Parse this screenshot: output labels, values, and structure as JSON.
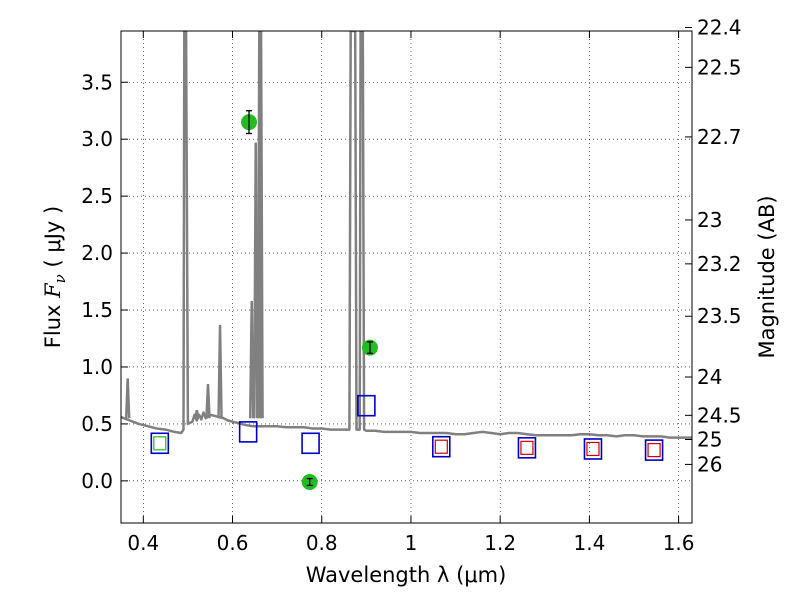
{
  "chart_data": {
    "type": "scatter",
    "xlabel": "Wavelength  λ (μm)",
    "ylabel": "Flux  F_ν  ( μJy )",
    "ylabel_parts": {
      "prefix": "Flux  ",
      "symbol": "F",
      "subscript": "ν",
      "suffix": "  ( μJy )"
    },
    "y2label": "Magnitude (AB)",
    "xlim": [
      0.35,
      1.63
    ],
    "ylim": [
      -0.37,
      3.95
    ],
    "x_ticks": [
      0.4,
      0.6,
      0.8,
      1.0,
      1.2,
      1.4,
      1.6
    ],
    "x_tick_labels": [
      "0.4",
      "0.6",
      "0.8",
      "1",
      "1.2",
      "1.4",
      "1.6"
    ],
    "y_ticks": [
      0.0,
      0.5,
      1.0,
      1.5,
      2.0,
      2.5,
      3.0,
      3.5
    ],
    "y_tick_labels": [
      "0.0",
      "0.5",
      "1.0",
      "1.5",
      "2.0",
      "2.5",
      "3.0",
      "3.5"
    ],
    "y2_ticks": [
      22.4,
      22.5,
      22.7,
      23,
      23.2,
      23.5,
      24,
      24.5,
      25,
      26
    ],
    "y2_tick_labels": [
      "22.4",
      "22.5",
      "22.7",
      "23",
      "23.2",
      "23.5",
      "24",
      "24.5",
      "25",
      "26"
    ],
    "grid": true,
    "colors": {
      "spectrum": "#808080",
      "observed": "#22bb22",
      "model_blue": "#0000cc",
      "model_red": "#cc0000",
      "model_green": "#22bb22"
    },
    "series": [
      {
        "kind": "spectrum",
        "points": [
          [
            0.35,
            0.56
          ],
          [
            0.37,
            0.53
          ],
          [
            0.39,
            0.5
          ],
          [
            0.41,
            0.48
          ],
          [
            0.43,
            0.46
          ],
          [
            0.45,
            0.45
          ],
          [
            0.47,
            0.43
          ],
          [
            0.485,
            0.42
          ],
          [
            0.49,
            0.45
          ],
          [
            0.492,
            3.95
          ],
          [
            0.496,
            3.95
          ],
          [
            0.5,
            0.5
          ],
          [
            0.51,
            0.52
          ],
          [
            0.515,
            0.58
          ],
          [
            0.52,
            0.53
          ],
          [
            0.525,
            0.58
          ],
          [
            0.53,
            0.54
          ],
          [
            0.535,
            0.6
          ],
          [
            0.54,
            0.55
          ],
          [
            0.55,
            0.58
          ],
          [
            0.56,
            0.57
          ],
          [
            0.57,
            0.56
          ],
          [
            0.58,
            0.55
          ],
          [
            0.59,
            0.53
          ],
          [
            0.6,
            0.52
          ],
          [
            0.62,
            0.5
          ],
          [
            0.63,
            0.49
          ],
          [
            0.645,
            0.48
          ],
          [
            0.66,
            0.48
          ],
          [
            0.68,
            0.48
          ],
          [
            0.7,
            0.48
          ],
          [
            0.72,
            0.47
          ],
          [
            0.74,
            0.47
          ],
          [
            0.76,
            0.47
          ],
          [
            0.78,
            0.46
          ],
          [
            0.8,
            0.46
          ],
          [
            0.82,
            0.45
          ],
          [
            0.84,
            0.45
          ],
          [
            0.862,
            0.45
          ],
          [
            0.865,
            3.95
          ],
          [
            0.875,
            3.95
          ],
          [
            0.878,
            0.45
          ],
          [
            0.88,
            0.45
          ],
          [
            0.885,
            0.45
          ],
          [
            0.887,
            3.95
          ],
          [
            0.892,
            3.95
          ],
          [
            0.895,
            0.45
          ],
          [
            0.9,
            0.44
          ],
          [
            0.92,
            0.44
          ],
          [
            0.94,
            0.43
          ],
          [
            0.96,
            0.43
          ],
          [
            0.98,
            0.43
          ],
          [
            1.0,
            0.43
          ],
          [
            1.02,
            0.42
          ],
          [
            1.04,
            0.42
          ],
          [
            1.06,
            0.42
          ],
          [
            1.08,
            0.42
          ],
          [
            1.1,
            0.41
          ],
          [
            1.12,
            0.41
          ],
          [
            1.14,
            0.42
          ],
          [
            1.16,
            0.43
          ],
          [
            1.18,
            0.42
          ],
          [
            1.2,
            0.41
          ],
          [
            1.22,
            0.42
          ],
          [
            1.24,
            0.42
          ],
          [
            1.26,
            0.41
          ],
          [
            1.28,
            0.4
          ],
          [
            1.3,
            0.4
          ],
          [
            1.32,
            0.4
          ],
          [
            1.34,
            0.4
          ],
          [
            1.36,
            0.4
          ],
          [
            1.38,
            0.41
          ],
          [
            1.4,
            0.41
          ],
          [
            1.42,
            0.4
          ],
          [
            1.44,
            0.4
          ],
          [
            1.46,
            0.39
          ],
          [
            1.48,
            0.4
          ],
          [
            1.5,
            0.4
          ],
          [
            1.52,
            0.39
          ],
          [
            1.54,
            0.39
          ],
          [
            1.56,
            0.39
          ],
          [
            1.58,
            0.38
          ],
          [
            1.6,
            0.38
          ],
          [
            1.63,
            0.38
          ]
        ],
        "spikes": [
          [
            0.365,
            0.9
          ],
          [
            0.52,
            0.62
          ],
          [
            0.545,
            0.85
          ],
          [
            0.572,
            1.37
          ],
          [
            0.643,
            1.58
          ],
          [
            0.652,
            2.97
          ],
          [
            0.66,
            3.95
          ],
          [
            0.664,
            3.95
          ]
        ]
      },
      {
        "kind": "observed",
        "points": [
          {
            "x": 0.637,
            "y": 3.15,
            "err": 0.1
          },
          {
            "x": 0.908,
            "y": 1.17,
            "err": 0.05
          },
          {
            "x": 0.773,
            "y": -0.01,
            "err": 0.03
          }
        ]
      },
      {
        "kind": "model",
        "points": [
          {
            "x": 0.437,
            "y": 0.33,
            "edge": "blue",
            "fill": "green"
          },
          {
            "x": 0.635,
            "y": 0.43,
            "edge": "blue",
            "fill": null
          },
          {
            "x": 0.775,
            "y": 0.33,
            "edge": "blue",
            "fill": null
          },
          {
            "x": 0.9,
            "y": 0.66,
            "edge": "blue",
            "fill": null
          },
          {
            "x": 1.068,
            "y": 0.3,
            "edge": "blue",
            "fill": "red"
          },
          {
            "x": 1.26,
            "y": 0.29,
            "edge": "blue",
            "fill": "red"
          },
          {
            "x": 1.408,
            "y": 0.28,
            "edge": "blue",
            "fill": "red"
          },
          {
            "x": 1.545,
            "y": 0.27,
            "edge": "blue",
            "fill": "red"
          }
        ]
      }
    ]
  }
}
